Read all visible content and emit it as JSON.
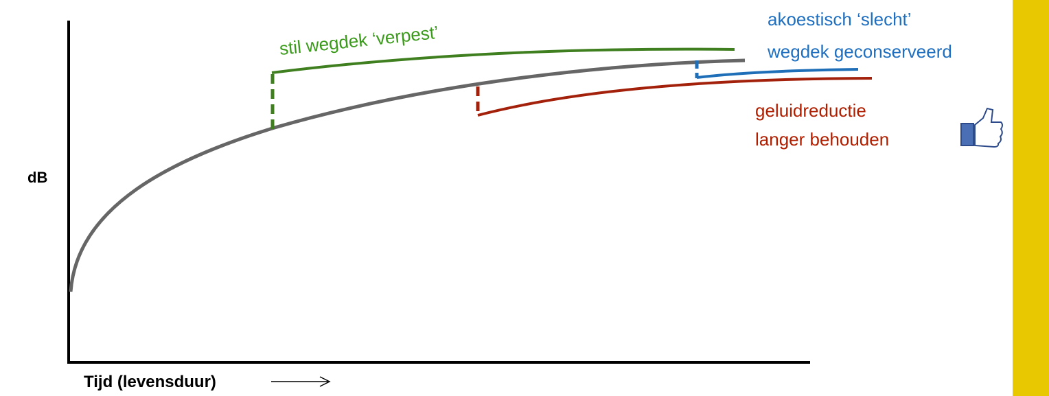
{
  "y_axis_label": "dB",
  "x_axis_label": "Tijd (levensduur)",
  "annotations": {
    "green": "stil wegdek ‘verpest’",
    "blue": [
      "akoestisch ‘slecht’",
      "wegdek geconserveerd"
    ],
    "red": [
      "geluidreductie",
      "langer behouden"
    ]
  }
}
